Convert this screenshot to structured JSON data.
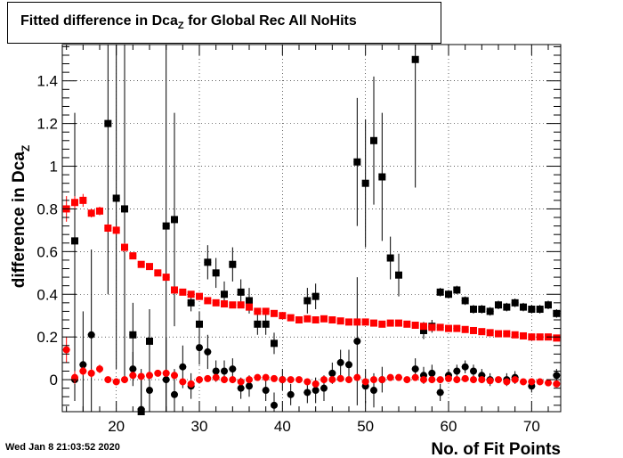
{
  "title": {
    "main": "Fitted difference in Dca",
    "sub": "Z",
    "rest": " for Global Rec All NoHits"
  },
  "timestamp": "Wed Jan  8 21:03:52 2020",
  "colors": {
    "black_series": "#000000",
    "red_series": "#ff0000",
    "grid": "#000000"
  },
  "chart_data": {
    "type": "scatter",
    "xlabel": "No. of Fit Points",
    "ylabel": "difference in Dca",
    "ylabel_sub": "Z",
    "xlim": [
      13.5,
      73.5
    ],
    "ylim": [
      -0.15,
      1.57
    ],
    "xticks": [
      20,
      30,
      40,
      50,
      60,
      70
    ],
    "yticks": [
      0,
      0.2,
      0.4,
      0.6,
      0.8,
      1,
      1.2,
      1.4
    ],
    "ytick_labels": [
      "0",
      "0.2",
      "0.4",
      "0.6",
      "0.8",
      "1",
      "1.2",
      "1.4"
    ],
    "grid": true,
    "series": [
      {
        "marker": "square",
        "color": "#000000",
        "x": [
          15,
          19,
          20,
          21,
          22,
          23,
          24,
          26,
          27,
          29,
          30,
          31,
          32,
          33,
          34,
          35,
          36,
          37,
          38,
          39,
          43,
          44,
          49,
          50,
          51,
          52,
          53,
          54,
          56,
          57,
          58,
          59,
          60,
          61,
          62,
          63,
          64,
          65,
          66,
          67,
          68,
          69,
          70,
          71,
          72,
          73
        ],
        "y": [
          0.65,
          1.2,
          0.85,
          0.8,
          0.21,
          -0.15,
          0.18,
          0.72,
          0.75,
          0.36,
          0.26,
          0.55,
          0.5,
          0.4,
          0.54,
          0.41,
          0.37,
          0.26,
          0.26,
          0.17,
          0.37,
          0.39,
          1.02,
          0.92,
          1.12,
          0.95,
          0.57,
          0.49,
          1.5,
          0.23,
          0.25,
          0.41,
          0.4,
          0.42,
          0.37,
          0.33,
          0.33,
          0.32,
          0.35,
          0.34,
          0.36,
          0.34,
          0.33,
          0.33,
          0.35,
          0.31
        ],
        "err": [
          0.6,
          0.8,
          0.8,
          0.6,
          0.15,
          0.2,
          0.15,
          0.9,
          0.5,
          0.04,
          0.06,
          0.08,
          0.07,
          0.06,
          0.08,
          0.06,
          0.06,
          0.05,
          0.05,
          0.05,
          0.06,
          0.06,
          0.3,
          0.3,
          0.3,
          0.3,
          0.1,
          0.1,
          0.6,
          0.04,
          0.03,
          0.02,
          0.02,
          0.02,
          0.02,
          0.02,
          0.02,
          0.02,
          0.02,
          0.02,
          0.02,
          0.02,
          0.02,
          0.02,
          0.02,
          0.02
        ]
      },
      {
        "marker": "circle",
        "color": "#000000",
        "x": [
          15,
          16,
          17,
          21,
          22,
          23,
          24,
          26,
          27,
          28,
          29,
          30,
          31,
          32,
          33,
          34,
          35,
          36,
          38,
          39,
          40,
          41,
          43,
          44,
          45,
          46,
          47,
          48,
          49,
          50,
          51,
          52,
          56,
          57,
          58,
          59,
          60,
          61,
          62,
          63,
          64,
          65,
          67,
          68,
          70,
          73
        ],
        "y": [
          0.0,
          0.07,
          0.21,
          0.8,
          0.05,
          -0.14,
          -0.05,
          0.0,
          -0.07,
          0.06,
          -0.03,
          0.15,
          0.13,
          0.04,
          0.04,
          0.05,
          -0.04,
          -0.03,
          -0.05,
          -0.12,
          0.0,
          -0.07,
          -0.06,
          -0.05,
          -0.04,
          0.03,
          0.08,
          0.07,
          0.18,
          -0.03,
          -0.05,
          0.0,
          0.05,
          0.02,
          0.03,
          -0.06,
          0.02,
          0.04,
          0.06,
          0.04,
          0.02,
          0.0,
          0.0,
          0.01,
          -0.03,
          0.02
        ],
        "err": [
          0.1,
          0.25,
          0.4,
          0.8,
          0.08,
          0.15,
          0.12,
          0.2,
          0.12,
          0.1,
          0.06,
          0.08,
          0.08,
          0.05,
          0.05,
          0.05,
          0.05,
          0.05,
          0.05,
          0.06,
          0.05,
          0.05,
          0.05,
          0.06,
          0.06,
          0.05,
          0.06,
          0.07,
          0.3,
          0.08,
          0.08,
          0.06,
          0.05,
          0.04,
          0.04,
          0.04,
          0.03,
          0.03,
          0.03,
          0.03,
          0.03,
          0.03,
          0.03,
          0.03,
          0.03,
          0.03
        ]
      },
      {
        "marker": "square",
        "color": "#ff0000",
        "x": [
          14,
          15,
          16,
          17,
          18,
          19,
          20,
          21,
          22,
          23,
          24,
          25,
          26,
          27,
          28,
          29,
          30,
          31,
          32,
          33,
          34,
          35,
          36,
          37,
          38,
          39,
          40,
          41,
          42,
          43,
          44,
          45,
          46,
          47,
          48,
          49,
          50,
          51,
          52,
          53,
          54,
          55,
          56,
          57,
          58,
          59,
          60,
          61,
          62,
          63,
          64,
          65,
          66,
          67,
          68,
          69,
          70,
          71,
          72,
          73
        ],
        "y": [
          0.8,
          0.83,
          0.84,
          0.78,
          0.79,
          0.71,
          0.7,
          0.62,
          0.58,
          0.54,
          0.53,
          0.5,
          0.48,
          0.42,
          0.41,
          0.4,
          0.39,
          0.37,
          0.36,
          0.355,
          0.35,
          0.35,
          0.34,
          0.32,
          0.32,
          0.31,
          0.3,
          0.29,
          0.28,
          0.285,
          0.28,
          0.285,
          0.28,
          0.275,
          0.27,
          0.27,
          0.27,
          0.265,
          0.26,
          0.265,
          0.265,
          0.26,
          0.255,
          0.25,
          0.245,
          0.245,
          0.24,
          0.24,
          0.235,
          0.23,
          0.225,
          0.22,
          0.215,
          0.215,
          0.21,
          0.205,
          0.2,
          0.2,
          0.2,
          0.195
        ],
        "err": [
          0.06,
          0.03,
          0.03,
          0.02,
          0.02,
          0.02,
          0.02,
          0.02,
          0.015,
          0.015,
          0.01,
          0.01,
          0.01,
          0.01,
          0.01,
          0.01,
          0.01,
          0.01,
          0.01,
          0.01,
          0.01,
          0.01,
          0.01,
          0.01,
          0.01,
          0.01,
          0.01,
          0.01,
          0.01,
          0.01,
          0.01,
          0.01,
          0.01,
          0.01,
          0.01,
          0.01,
          0.01,
          0.01,
          0.01,
          0.01,
          0.01,
          0.01,
          0.01,
          0.01,
          0.01,
          0.01,
          0.01,
          0.01,
          0.01,
          0.01,
          0.01,
          0.01,
          0.01,
          0.01,
          0.01,
          0.01,
          0.01,
          0.01,
          0.01,
          0.01
        ]
      },
      {
        "marker": "circle",
        "color": "#ff0000",
        "x": [
          14,
          15,
          16,
          17,
          18,
          19,
          20,
          21,
          22,
          23,
          24,
          25,
          26,
          27,
          28,
          29,
          30,
          31,
          32,
          33,
          34,
          35,
          36,
          37,
          38,
          39,
          40,
          41,
          42,
          43,
          44,
          45,
          46,
          47,
          48,
          49,
          50,
          51,
          52,
          53,
          54,
          55,
          56,
          57,
          58,
          59,
          60,
          61,
          62,
          63,
          64,
          65,
          66,
          67,
          68,
          69,
          70,
          71,
          72,
          73
        ],
        "y": [
          0.14,
          0.01,
          0.04,
          0.03,
          0.05,
          0.0,
          -0.01,
          0.0,
          0.02,
          0.015,
          0.02,
          0.03,
          0.03,
          0.02,
          -0.01,
          -0.02,
          0.0,
          0.005,
          0.01,
          0.0,
          0.0,
          -0.01,
          0.0,
          0.01,
          0.01,
          0.005,
          0.0,
          0.0,
          0.0,
          -0.01,
          -0.02,
          0.0,
          0.0,
          0.005,
          0.0,
          0.01,
          -0.01,
          0.0,
          0.0,
          0.01,
          0.01,
          0.0,
          0.01,
          0.0,
          0.0,
          0.0,
          0.005,
          0.0,
          0.005,
          0.0,
          0.0,
          -0.005,
          0.0,
          -0.01,
          0.0,
          -0.01,
          -0.01,
          -0.01,
          -0.015,
          -0.02
        ],
        "err": [
          0.06,
          0.03,
          0.02,
          0.02,
          0.02,
          0.015,
          0.015,
          0.01,
          0.01,
          0.01,
          0.01,
          0.01,
          0.01,
          0.01,
          0.01,
          0.01,
          0.01,
          0.01,
          0.01,
          0.01,
          0.01,
          0.01,
          0.01,
          0.01,
          0.01,
          0.01,
          0.01,
          0.01,
          0.01,
          0.01,
          0.01,
          0.01,
          0.01,
          0.01,
          0.01,
          0.01,
          0.01,
          0.01,
          0.01,
          0.01,
          0.01,
          0.01,
          0.01,
          0.01,
          0.01,
          0.01,
          0.01,
          0.01,
          0.01,
          0.01,
          0.01,
          0.01,
          0.01,
          0.01,
          0.01,
          0.01,
          0.01,
          0.01,
          0.01,
          0.01
        ]
      }
    ]
  }
}
